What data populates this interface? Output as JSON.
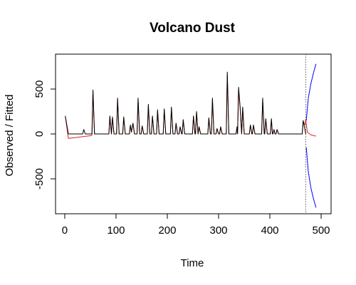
{
  "chart_data": {
    "type": "line",
    "title": "Volcano Dust",
    "xlabel": "Time",
    "ylabel": "Observed / Fitted",
    "xlim": [
      -18,
      519.4
    ],
    "ylim": [
      -889,
      889
    ],
    "xticks": [
      0,
      100,
      200,
      300,
      400,
      500
    ],
    "yticks": [
      -500,
      0,
      500
    ],
    "vline": 470,
    "series": [
      {
        "color": "#000000",
        "x": [
          1,
          7,
          35,
          37,
          40,
          53,
          55,
          58,
          86,
          88,
          91,
          93,
          96,
          101,
          103,
          106,
          113,
          115,
          118,
          126,
          128,
          130,
          131,
          133,
          136,
          141,
          143,
          146,
          149,
          151,
          154,
          161,
          163,
          166,
          169,
          171,
          174,
          179,
          181,
          184,
          192,
          194,
          197,
          206,
          208,
          211,
          215,
          217,
          220,
          223,
          225,
          228,
          229,
          231,
          234,
          249,
          251,
          254,
          255,
          257,
          260,
          262,
          265,
          279,
          281,
          284,
          286,
          288,
          291,
          295,
          297,
          300,
          302,
          304,
          307,
          315,
          317,
          320,
          334,
          336,
          337,
          339,
          342,
          345,
          347,
          350,
          360,
          362,
          365,
          366,
          368,
          371,
          384,
          386,
          389,
          390,
          392,
          395,
          401,
          403,
          405,
          406,
          408,
          410,
          412,
          414,
          417,
          463,
          465,
          468,
          470
        ],
        "values": [
          200,
          0,
          0,
          50,
          0,
          0,
          490,
          0,
          0,
          200,
          0,
          190,
          0,
          0,
          400,
          0,
          0,
          190,
          0,
          0,
          100,
          20,
          60,
          120,
          0,
          0,
          400,
          0,
          0,
          90,
          0,
          0,
          330,
          0,
          0,
          200,
          0,
          0,
          270,
          0,
          0,
          280,
          0,
          0,
          300,
          0,
          0,
          120,
          0,
          0,
          80,
          0,
          0,
          160,
          0,
          0,
          200,
          0,
          0,
          250,
          0,
          80,
          0,
          0,
          180,
          0,
          0,
          400,
          0,
          0,
          60,
          0,
          0,
          80,
          0,
          0,
          690,
          0,
          0,
          80,
          0,
          520,
          300,
          0,
          300,
          0,
          0,
          100,
          0,
          0,
          100,
          0,
          0,
          400,
          0,
          0,
          170,
          0,
          0,
          170,
          0,
          0,
          50,
          0,
          0,
          50,
          0,
          0,
          150,
          60,
          0
        ]
      },
      {
        "color": "#e02020",
        "x": [
          1,
          7,
          50,
          53,
          55,
          58,
          86,
          88,
          91,
          93,
          96,
          101,
          103,
          106,
          113,
          115,
          118,
          126,
          128,
          130,
          131,
          133,
          136,
          141,
          143,
          146,
          149,
          151,
          154,
          161,
          163,
          166,
          169,
          171,
          174,
          179,
          181,
          184,
          192,
          194,
          197,
          206,
          208,
          211,
          215,
          217,
          220,
          223,
          225,
          228,
          229,
          231,
          234,
          249,
          251,
          254,
          255,
          257,
          260,
          262,
          265,
          279,
          281,
          284,
          286,
          288,
          291,
          295,
          297,
          300,
          302,
          304,
          307,
          315,
          317,
          320,
          334,
          336,
          337,
          339,
          342,
          345,
          347,
          350,
          360,
          362,
          365,
          366,
          368,
          371,
          384,
          386,
          389,
          390,
          392,
          395,
          401,
          403,
          405,
          406,
          408,
          410,
          412,
          414,
          417,
          463,
          465,
          468,
          470,
          473,
          480,
          490
        ],
        "values": [
          200,
          -50,
          -20,
          -15,
          470,
          0,
          0,
          190,
          0,
          180,
          0,
          0,
          380,
          0,
          0,
          180,
          0,
          0,
          95,
          20,
          55,
          110,
          0,
          0,
          380,
          0,
          0,
          85,
          0,
          0,
          310,
          0,
          0,
          190,
          0,
          0,
          255,
          0,
          0,
          265,
          0,
          0,
          285,
          0,
          0,
          110,
          0,
          0,
          75,
          0,
          0,
          150,
          0,
          0,
          190,
          0,
          0,
          240,
          0,
          75,
          0,
          0,
          170,
          0,
          0,
          380,
          0,
          0,
          55,
          0,
          0,
          75,
          0,
          0,
          660,
          0,
          0,
          75,
          0,
          500,
          285,
          0,
          285,
          0,
          0,
          95,
          0,
          0,
          95,
          0,
          0,
          380,
          0,
          0,
          160,
          0,
          0,
          160,
          0,
          0,
          45,
          0,
          0,
          45,
          0,
          0,
          140,
          100,
          160,
          20,
          -10,
          -25
        ]
      },
      {
        "color": "#0000ff",
        "x": [
          471,
          475,
          480,
          485,
          490
        ],
        "values": [
          150,
          400,
          560,
          680,
          780
        ]
      },
      {
        "color": "#0000ff",
        "x": [
          471,
          475,
          480,
          485,
          490
        ],
        "values": [
          -150,
          -420,
          -600,
          -720,
          -820
        ]
      }
    ]
  }
}
